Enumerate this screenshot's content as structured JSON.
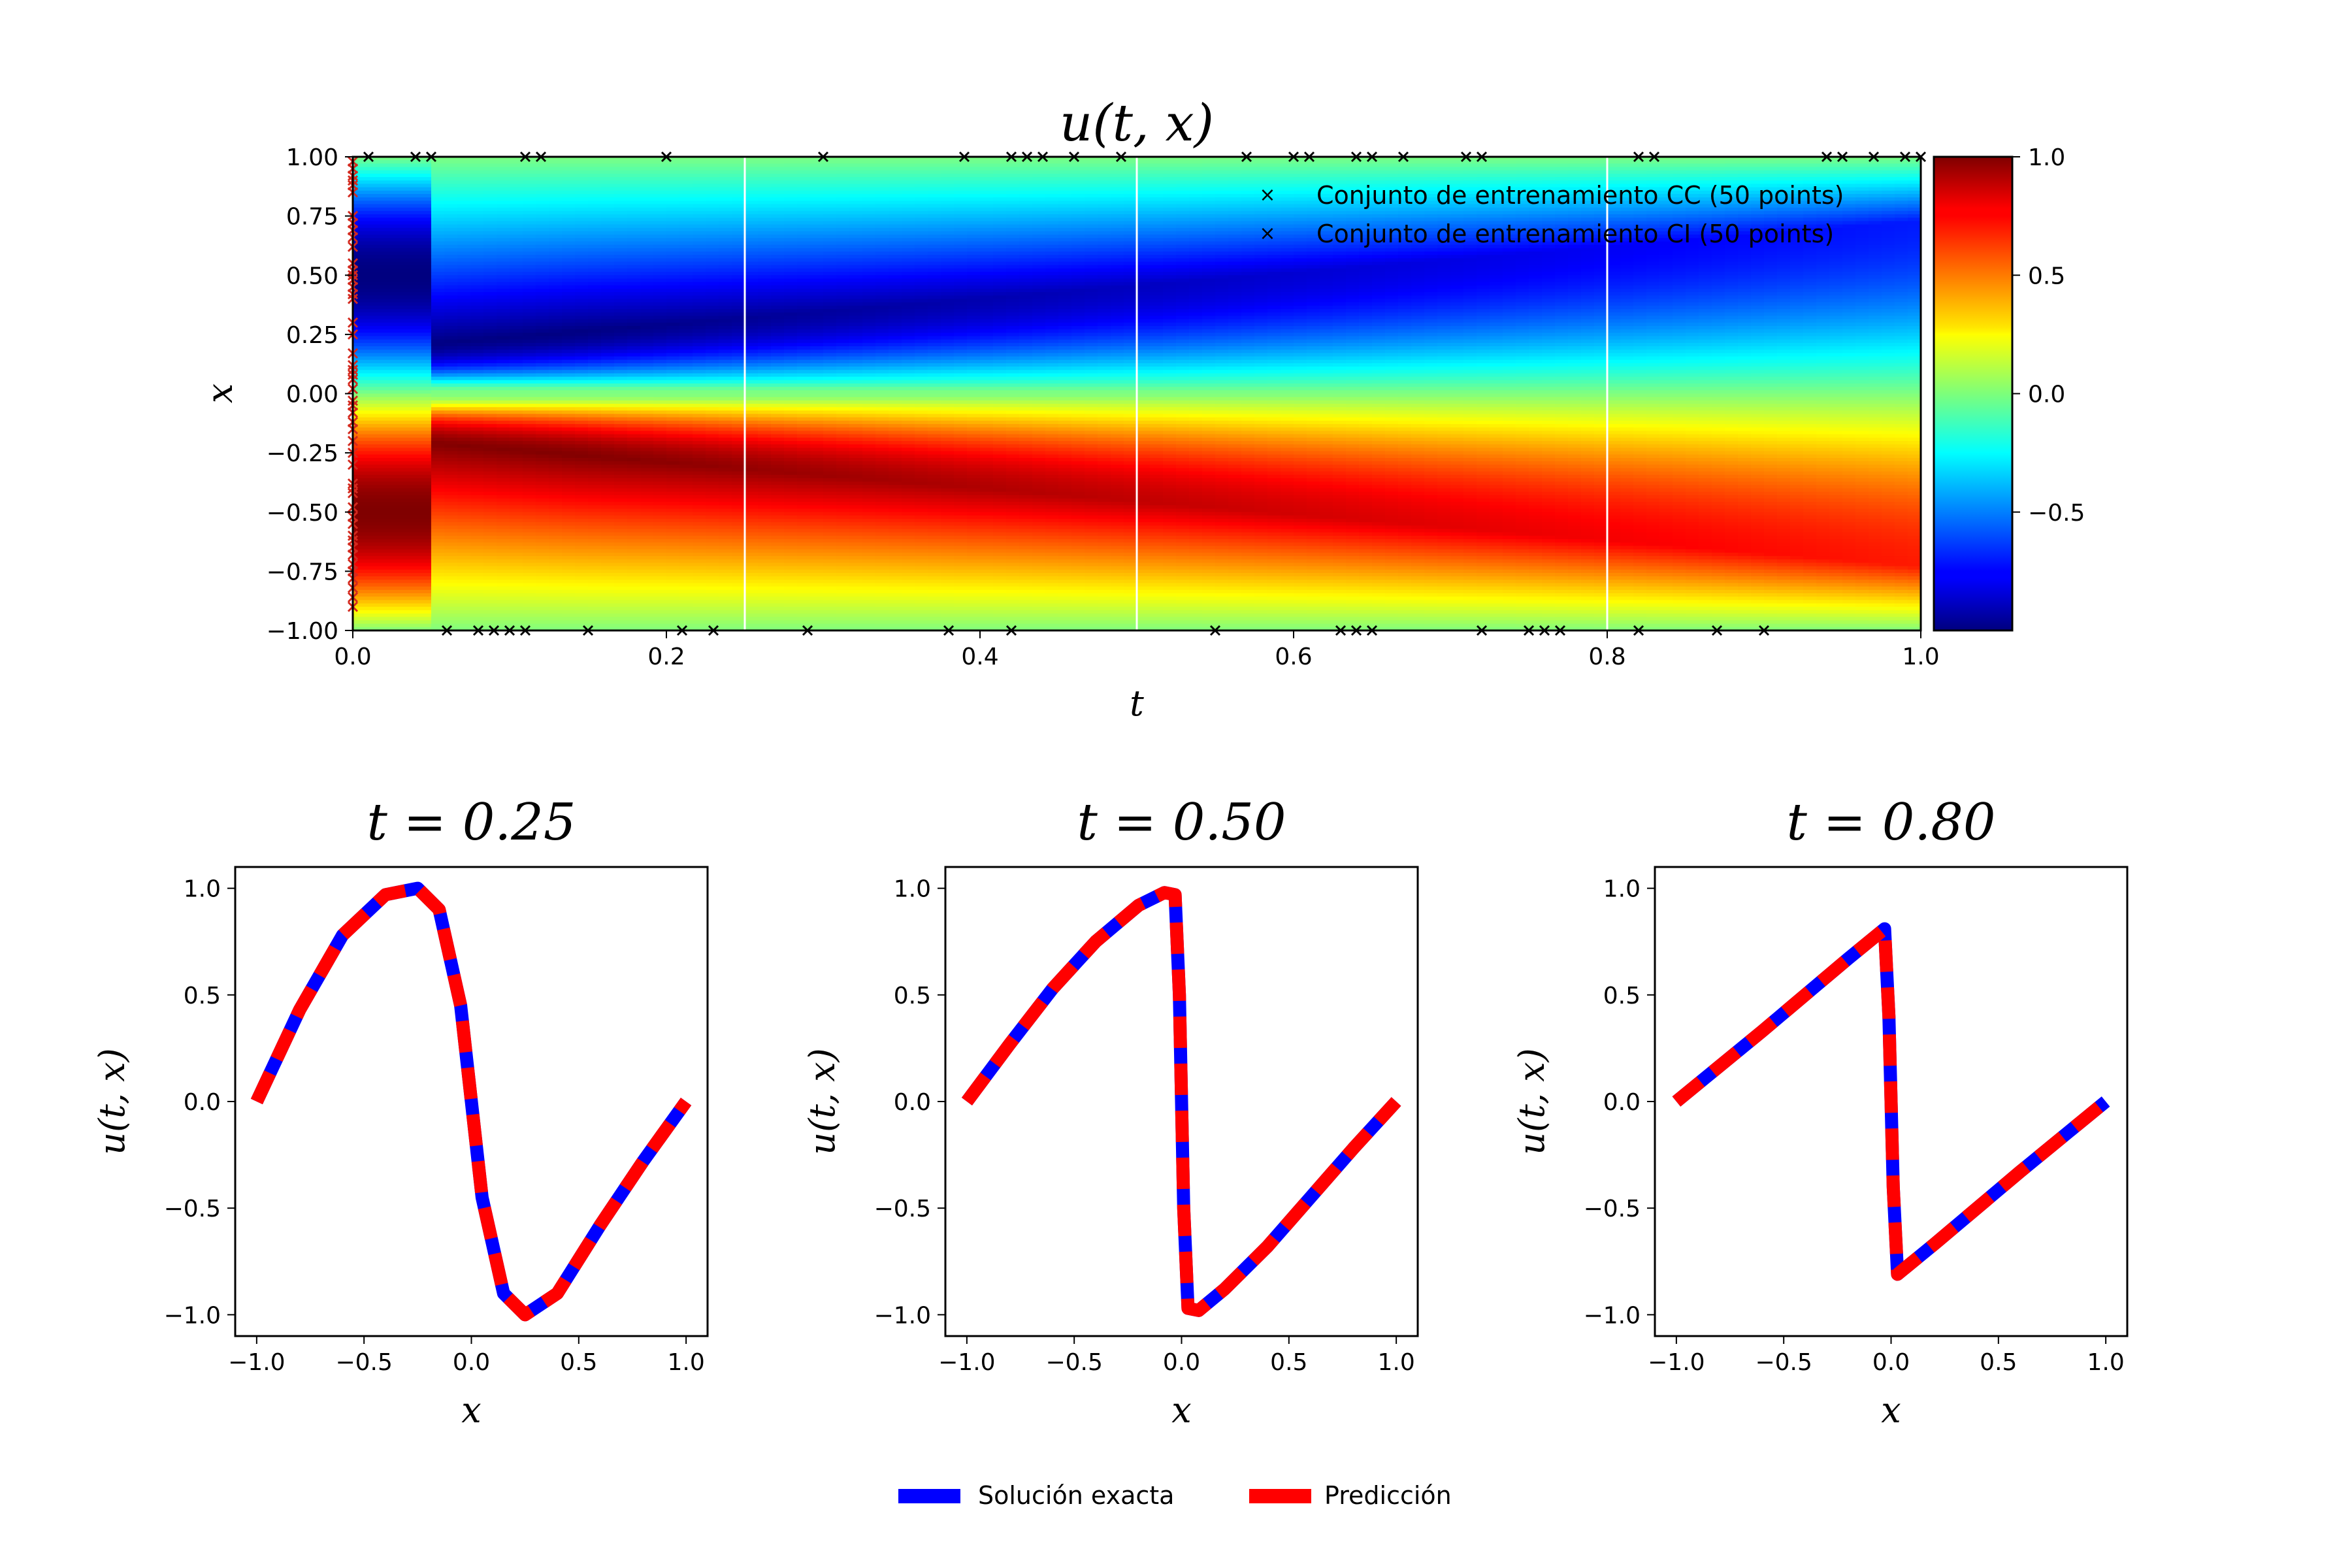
{
  "colors": {
    "bc_marker": "#000000",
    "ic_marker": "#d42a1f",
    "exact_line": "#0000ff",
    "prediction_line": "#ff0000",
    "time_lines": "#ffffff",
    "colormap": "jet"
  },
  "chart_data": [
    {
      "type": "heatmap",
      "title": "u(t, x)",
      "xlabel": "t",
      "ylabel": "x",
      "xlim": [
        0.0,
        1.0
      ],
      "ylim": [
        -1.0,
        1.0
      ],
      "xticks": [
        "0.0",
        "0.2",
        "0.4",
        "0.6",
        "0.8",
        "1.0"
      ],
      "yticks": [
        "1.00",
        "0.75",
        "0.50",
        "0.25",
        "0.00",
        "−0.25",
        "−0.50",
        "−0.75",
        "−1.00"
      ],
      "colorbar": {
        "vmin": -1.0,
        "vmax": 1.0,
        "ticks": [
          "1.0",
          "0.5",
          "0.0",
          "−0.5"
        ]
      },
      "time_slices": [
        0.25,
        0.5,
        0.8
      ],
      "legend": [
        {
          "label": "Conjunto de entrenamiento CC (50 points)",
          "color": "#000000",
          "marker": "x"
        },
        {
          "label": "Conjunto de entrenamiento CI (50 points)",
          "color": "#d42a1f",
          "marker": "x"
        }
      ],
      "bc_points_top_t": [
        0.01,
        0.04,
        0.05,
        0.11,
        0.12,
        0.2,
        0.3,
        0.39,
        0.42,
        0.43,
        0.44,
        0.46,
        0.49,
        0.57,
        0.6,
        0.61,
        0.64,
        0.65,
        0.67,
        0.71,
        0.72,
        0.82,
        0.83,
        0.94,
        0.95,
        0.97,
        0.99,
        1.0
      ],
      "bc_points_bottom_t": [
        0.06,
        0.08,
        0.09,
        0.1,
        0.11,
        0.15,
        0.21,
        0.23,
        0.29,
        0.38,
        0.42,
        0.55,
        0.63,
        0.64,
        0.65,
        0.72,
        0.75,
        0.76,
        0.77,
        0.82,
        0.87,
        0.9
      ],
      "ic_points_x": [
        0.98,
        0.95,
        0.92,
        0.9,
        0.88,
        0.85,
        0.75,
        0.72,
        0.69,
        0.66,
        0.62,
        0.55,
        0.52,
        0.5,
        0.48,
        0.45,
        0.42,
        0.4,
        0.3,
        0.25,
        0.17,
        0.12,
        0.1,
        0.08,
        0.06,
        0.02,
        -0.03,
        -0.05,
        -0.08,
        -0.12,
        -0.15,
        -0.2,
        -0.25,
        -0.3,
        -0.38,
        -0.4,
        -0.42,
        -0.48,
        -0.52,
        -0.55,
        -0.6,
        -0.62,
        -0.65,
        -0.68,
        -0.72,
        -0.75,
        -0.78,
        -0.82,
        -0.86,
        -0.9
      ]
    },
    {
      "type": "line",
      "title": "t = 0.25",
      "t": 0.25,
      "xlabel": "x",
      "ylabel": "u(t, x)",
      "xlim": [
        -1.0,
        1.0
      ],
      "ylim": [
        -1.1,
        1.1
      ],
      "xticks": [
        "−1.0",
        "−0.5",
        "0.0",
        "0.5",
        "1.0"
      ],
      "yticks": [
        "1.0",
        "0.5",
        "0.0",
        "−0.5",
        "−1.0"
      ],
      "series": [
        {
          "name": "Solución exacta"
        },
        {
          "name": "Predicción"
        }
      ],
      "x": [
        -1.0,
        -0.8,
        -0.6,
        -0.4,
        -0.25,
        -0.15,
        -0.05,
        0.0,
        0.05,
        0.15,
        0.25,
        0.4,
        0.6,
        0.8,
        1.0
      ],
      "y": [
        0.0,
        0.43,
        0.78,
        0.97,
        1.0,
        0.9,
        0.45,
        0.0,
        -0.45,
        -0.9,
        -1.0,
        -0.9,
        -0.58,
        -0.28,
        0.0
      ]
    },
    {
      "type": "line",
      "title": "t = 0.50",
      "t": 0.5,
      "xlabel": "x",
      "ylabel": "u(t, x)",
      "xlim": [
        -1.0,
        1.0
      ],
      "ylim": [
        -1.1,
        1.1
      ],
      "xticks": [
        "−1.0",
        "−0.5",
        "0.0",
        "0.5",
        "1.0"
      ],
      "yticks": [
        "1.0",
        "0.5",
        "0.0",
        "−0.5",
        "−1.0"
      ],
      "series": [
        {
          "name": "Solución exacta"
        },
        {
          "name": "Predicción"
        }
      ],
      "x": [
        -1.0,
        -0.8,
        -0.6,
        -0.4,
        -0.2,
        -0.08,
        -0.03,
        -0.01,
        0.01,
        0.03,
        0.08,
        0.2,
        0.4,
        0.6,
        0.8,
        1.0
      ],
      "y": [
        0.0,
        0.27,
        0.53,
        0.75,
        0.92,
        0.98,
        0.97,
        0.5,
        -0.5,
        -0.97,
        -0.98,
        -0.88,
        -0.68,
        -0.45,
        -0.22,
        0.0
      ]
    },
    {
      "type": "line",
      "title": "t = 0.80",
      "t": 0.8,
      "xlabel": "x",
      "ylabel": "u(t, x)",
      "xlim": [
        -1.0,
        1.0
      ],
      "ylim": [
        -1.1,
        1.1
      ],
      "xticks": [
        "−1.0",
        "−0.5",
        "0.0",
        "0.5",
        "1.0"
      ],
      "yticks": [
        "1.0",
        "0.5",
        "0.0",
        "−0.5",
        "−1.0"
      ],
      "series": [
        {
          "name": "Solución exacta"
        },
        {
          "name": "Predicción"
        }
      ],
      "x": [
        -1.0,
        -0.6,
        -0.2,
        -0.03,
        -0.01,
        0.01,
        0.03,
        0.2,
        0.6,
        1.0
      ],
      "y": [
        0.0,
        0.33,
        0.67,
        0.81,
        0.4,
        -0.4,
        -0.81,
        -0.67,
        -0.33,
        0.0
      ]
    }
  ],
  "bottom_legend": [
    {
      "label": "Solución exacta",
      "color": "#0000ff"
    },
    {
      "label": "Predicción",
      "color": "#ff0000"
    }
  ]
}
